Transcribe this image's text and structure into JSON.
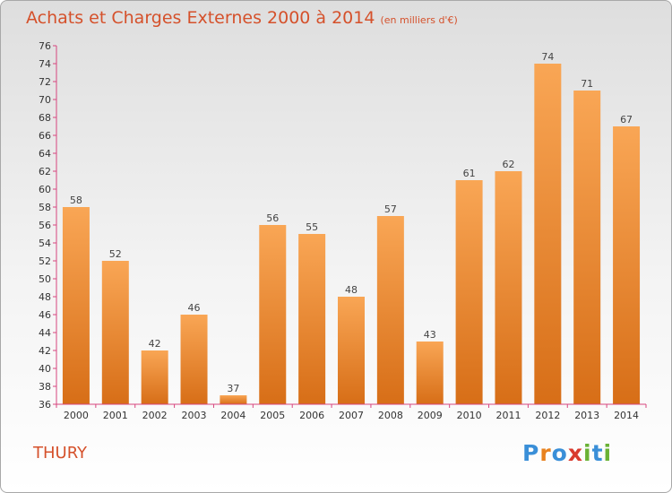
{
  "title": "Achats et Charges Externes 2000 à 2014",
  "subtitle": "(en milliers d'€)",
  "location": "THURY",
  "logo": {
    "letters": [
      "P",
      "r",
      "o",
      "x",
      "i",
      "t",
      "i"
    ],
    "colors": [
      "#3a8fd8",
      "#e8821f",
      "#3a8fd8",
      "#d93a2e",
      "#6ab235",
      "#3a8fd8",
      "#6ab235"
    ]
  },
  "colors": {
    "accent": "#d5512b",
    "bar_top": "#f9a655",
    "bar_bottom": "#d76e17",
    "axis": "#d7457e"
  },
  "chart_data": {
    "type": "bar",
    "categories": [
      "2000",
      "2001",
      "2002",
      "2003",
      "2004",
      "2005",
      "2006",
      "2007",
      "2008",
      "2009",
      "2010",
      "2011",
      "2012",
      "2013",
      "2014"
    ],
    "values": [
      58,
      52,
      42,
      46,
      37,
      56,
      55,
      48,
      57,
      43,
      61,
      62,
      74,
      71,
      67
    ],
    "title": "Achats et Charges Externes 2000 à 2014",
    "xlabel": "",
    "ylabel": "",
    "ylim": [
      36,
      76
    ],
    "ytick_step": 2,
    "grid": false,
    "data_labels": true
  }
}
